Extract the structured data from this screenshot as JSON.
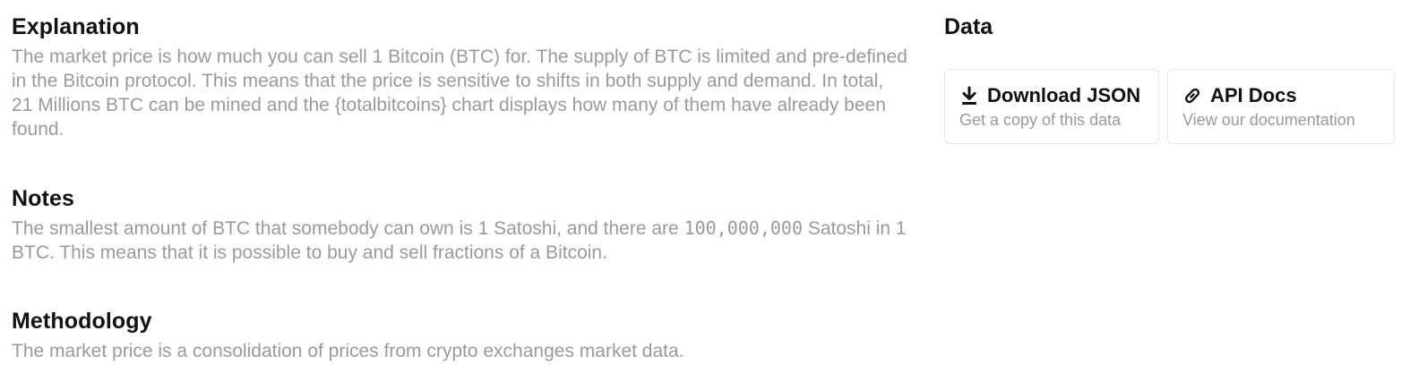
{
  "explanation": {
    "title": "Explanation",
    "body": "The market price is how much you can sell 1 Bitcoin (BTC) for. The supply of BTC is limited and pre-defined in the Bitcoin protocol. This means that the price is sensitive to shifts in both supply and demand. In total, 21 Millions BTC can be mined and the {totalbitcoins} chart displays how many of them have already been found."
  },
  "notes": {
    "title": "Notes",
    "body_before": "The smallest amount of BTC that somebody can own is 1 Satoshi, and there are ",
    "body_number": "100,000,000",
    "body_after": " Satoshi in 1 BTC. This means that it is possible to buy and sell fractions of a Bitcoin."
  },
  "methodology": {
    "title": "Methodology",
    "body": "The market price is a consolidation of prices from crypto exchanges market data."
  },
  "data": {
    "title": "Data",
    "download": {
      "icon": "download-icon",
      "title": "Download JSON",
      "subtitle": "Get a copy of this data"
    },
    "api": {
      "icon": "link-icon",
      "title": "API Docs",
      "subtitle": "View our documentation"
    }
  }
}
